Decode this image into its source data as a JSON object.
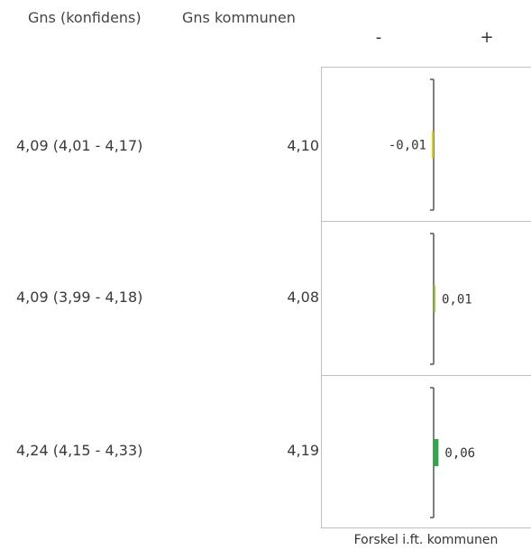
{
  "headers": {
    "confidence": "Gns  (konfidens)",
    "municipality": "Gns kommunen",
    "minus": "-",
    "plus": "+"
  },
  "chart_data": {
    "type": "bar",
    "xlabel": "Forskel i.ft. kommunen",
    "rows": [
      {
        "confidence_text": "4,09 (4,01 - 4,17)",
        "municipality_text": "4,10",
        "difference": -0.01,
        "label": "-0,01",
        "color": "#e2d000"
      },
      {
        "confidence_text": "4,09 (3,99 - 4,18)",
        "municipality_text": "4,08",
        "difference": 0.01,
        "label": "0,01",
        "color": "#9ec23a"
      },
      {
        "confidence_text": "4,24 (4,15 - 4,33)",
        "municipality_text": "4,19",
        "difference": 0.06,
        "label": "0,06",
        "color": "#2fa84a"
      }
    ]
  }
}
